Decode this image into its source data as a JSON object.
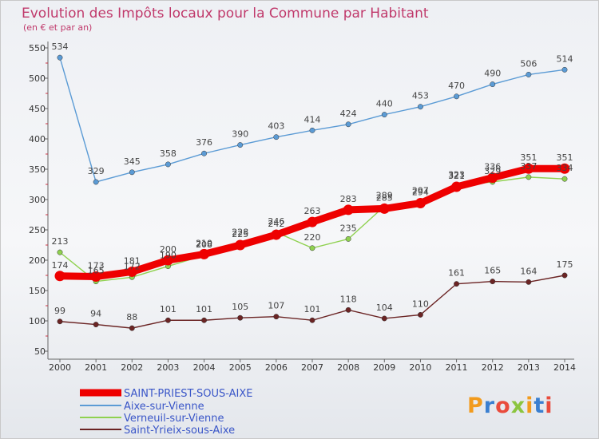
{
  "chart_data": {
    "type": "line",
    "title": "Evolution des Impôts locaux pour la Commune par Habitant",
    "subtitle": "(en € et par an)",
    "xlabel": "",
    "ylabel": "",
    "ylim": [
      50,
      550
    ],
    "yticks": [
      50,
      100,
      150,
      200,
      250,
      300,
      350,
      400,
      450,
      500,
      550
    ],
    "x": [
      "2000",
      "2001",
      "2002",
      "2003",
      "2004",
      "2005",
      "2006",
      "2007",
      "2008",
      "2009",
      "2010",
      "2011",
      "2012",
      "2013",
      "2014"
    ],
    "grid": false,
    "legend_position": "bottom-left",
    "series": [
      {
        "name": "Aixe-sur-Vienne",
        "color": "#5b9bd5",
        "emphasis": false,
        "values": [
          534,
          329,
          345,
          358,
          376,
          390,
          403,
          414,
          424,
          440,
          453,
          470,
          490,
          506,
          514
        ]
      },
      {
        "name": "Verneuil-sur-Vienne",
        "color": "#8fd14f",
        "emphasis": false,
        "values": [
          213,
          165,
          172,
          190,
          208,
          228,
          246,
          220,
          235,
          289,
          297,
          323,
          329,
          337,
          334
        ]
      },
      {
        "name": "Saint-Yrieix-sous-Aixe",
        "color": "#6b2424",
        "emphasis": false,
        "values": [
          99,
          94,
          88,
          101,
          101,
          105,
          107,
          101,
          118,
          104,
          110,
          161,
          165,
          164,
          175
        ]
      },
      {
        "name": "SAINT-PRIEST-SOUS-AIXE",
        "color": "#ee0000",
        "emphasis": true,
        "values": [
          174,
          173,
          181,
          200,
          210,
          225,
          242,
          263,
          283,
          285,
          294,
          321,
          336,
          351,
          351
        ]
      }
    ],
    "legend": [
      "SAINT-PRIEST-SOUS-AIXE",
      "Aixe-sur-Vienne",
      "Verneuil-sur-Vienne",
      "Saint-Yrieix-sous-Aixe"
    ]
  },
  "watermark": "Proxiti"
}
